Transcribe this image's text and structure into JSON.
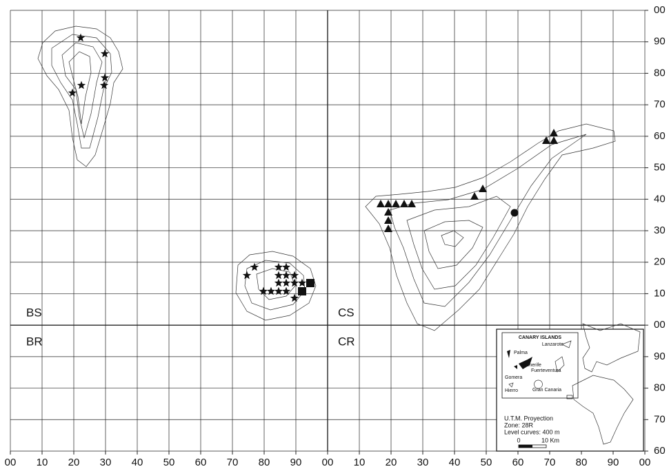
{
  "x_axis_labels": [
    "00",
    "10",
    "20",
    "30",
    "40",
    "50",
    "60",
    "70",
    "80",
    "90",
    "00",
    "10",
    "20",
    "30",
    "40",
    "50",
    "60",
    "70",
    "80",
    "90",
    "00"
  ],
  "y_axis_labels": [
    "00",
    "90",
    "80",
    "70",
    "60",
    "50",
    "40",
    "30",
    "20",
    "10",
    "00",
    "90",
    "80",
    "70",
    "60"
  ],
  "zone_labels": [
    "BS",
    "BR",
    "CS",
    "CR"
  ],
  "inset": {
    "title": "CANARY ISLANDS",
    "islands": [
      "Lanzarote",
      "Palma",
      "Tenerife",
      "Fuerteventura",
      "Gomera",
      "Hierro",
      "Gran Canaria"
    ],
    "projection": "U.T.M. Proyection",
    "zone": "Zone: 28R",
    "level_curves": "Level curves: 400 m",
    "scale": [
      "0",
      "10 Km"
    ]
  }
}
